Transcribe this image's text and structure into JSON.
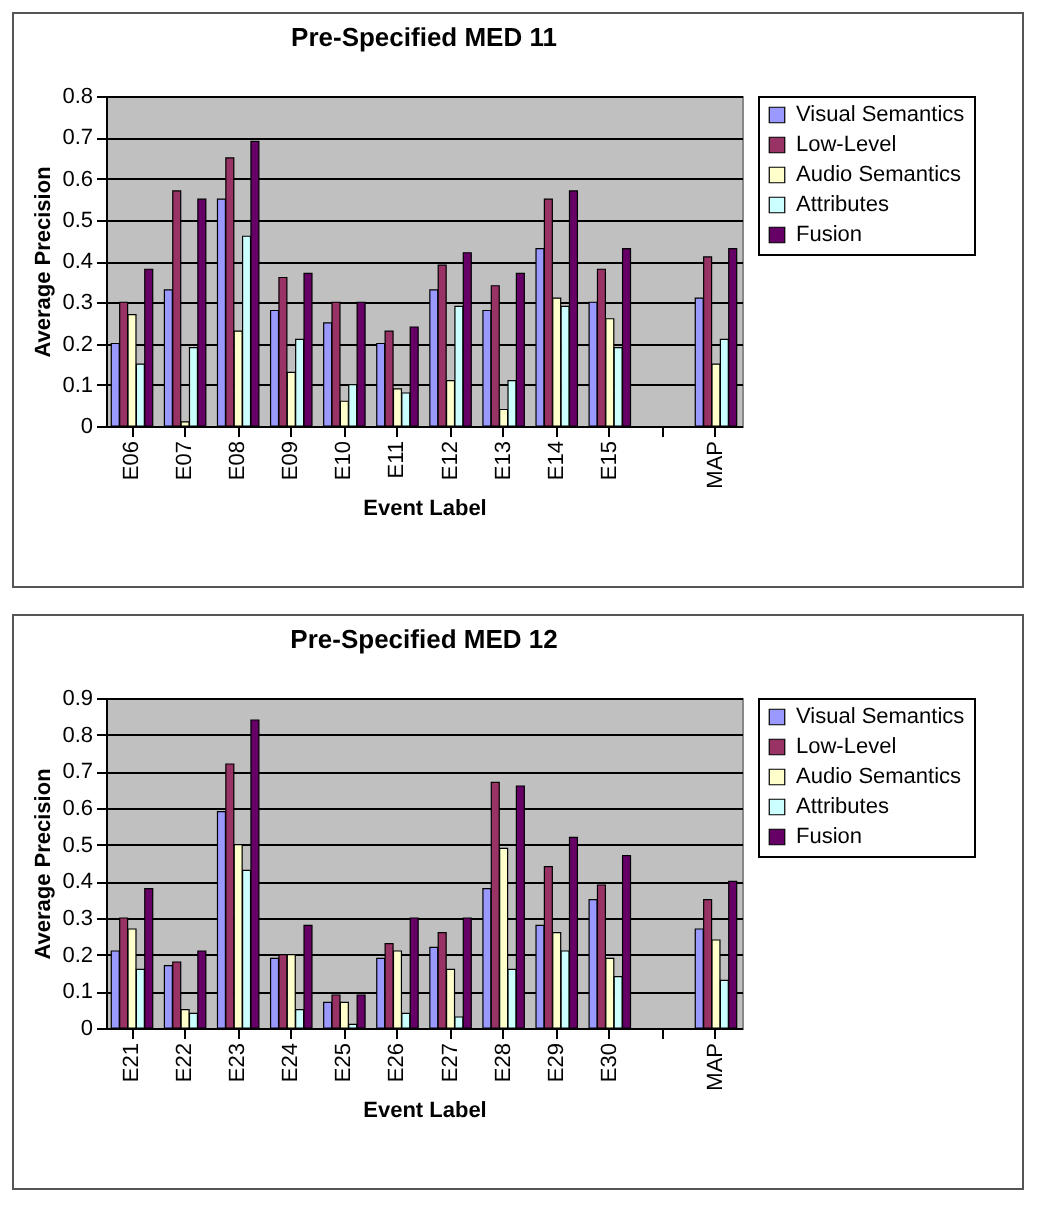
{
  "chart_data": [
    {
      "type": "bar",
      "title": "Pre-Specified MED 11",
      "xlabel": "Event Label",
      "ylabel": "Average Precision",
      "categories": [
        "E06",
        "E07",
        "E08",
        "E09",
        "E10",
        "E11",
        "E12",
        "E13",
        "E14",
        "E15",
        null,
        "MAP"
      ],
      "series": [
        {
          "name": "Visual Semantics",
          "color": "#9999ff",
          "values": [
            0.2,
            0.33,
            0.55,
            0.28,
            0.25,
            0.2,
            0.33,
            0.28,
            0.43,
            0.3,
            null,
            0.31
          ]
        },
        {
          "name": "Low-Level",
          "color": "#993366",
          "values": [
            0.3,
            0.57,
            0.65,
            0.36,
            0.3,
            0.23,
            0.39,
            0.34,
            0.55,
            0.38,
            null,
            0.41
          ]
        },
        {
          "name": "Audio Semantics",
          "color": "#ffffcc",
          "values": [
            0.27,
            0.01,
            0.23,
            0.13,
            0.06,
            0.09,
            0.11,
            0.04,
            0.31,
            0.26,
            null,
            0.15
          ]
        },
        {
          "name": "Attributes",
          "color": "#ccffff",
          "values": [
            0.15,
            0.19,
            0.46,
            0.21,
            0.1,
            0.08,
            0.29,
            0.11,
            0.29,
            0.19,
            null,
            0.21
          ]
        },
        {
          "name": "Fusion",
          "color": "#660066",
          "values": [
            0.38,
            0.55,
            0.69,
            0.37,
            0.3,
            0.24,
            0.42,
            0.37,
            0.57,
            0.43,
            null,
            0.43
          ]
        }
      ],
      "ylim": [
        0,
        0.8
      ],
      "yticks": [
        0,
        0.1,
        0.2,
        0.3,
        0.4,
        0.5,
        0.6,
        0.7,
        0.8
      ],
      "grid": "y",
      "legend": "right"
    },
    {
      "type": "bar",
      "title": "Pre-Specified MED 12",
      "xlabel": "Event Label",
      "ylabel": "Average Precision",
      "categories": [
        "E21",
        "E22",
        "E23",
        "E24",
        "E25",
        "E26",
        "E27",
        "E28",
        "E29",
        "E30",
        null,
        "MAP"
      ],
      "series": [
        {
          "name": "Visual Semantics",
          "color": "#9999ff",
          "values": [
            0.21,
            0.17,
            0.59,
            0.19,
            0.07,
            0.19,
            0.22,
            0.38,
            0.28,
            0.35,
            null,
            0.27
          ]
        },
        {
          "name": "Low-Level",
          "color": "#993366",
          "values": [
            0.3,
            0.18,
            0.72,
            0.2,
            0.09,
            0.23,
            0.26,
            0.67,
            0.44,
            0.39,
            null,
            0.35
          ]
        },
        {
          "name": "Audio Semantics",
          "color": "#ffffcc",
          "values": [
            0.27,
            0.05,
            0.5,
            0.2,
            0.07,
            0.21,
            0.16,
            0.49,
            0.26,
            0.19,
            null,
            0.24
          ]
        },
        {
          "name": "Attributes",
          "color": "#ccffff",
          "values": [
            0.16,
            0.04,
            0.43,
            0.05,
            0.01,
            0.04,
            0.03,
            0.16,
            0.21,
            0.14,
            null,
            0.13
          ]
        },
        {
          "name": "Fusion",
          "color": "#660066",
          "values": [
            0.38,
            0.21,
            0.84,
            0.28,
            0.09,
            0.3,
            0.3,
            0.66,
            0.52,
            0.47,
            null,
            0.4
          ]
        }
      ],
      "ylim": [
        0,
        0.9
      ],
      "yticks": [
        0,
        0.1,
        0.2,
        0.3,
        0.4,
        0.5,
        0.6,
        0.7,
        0.8,
        0.9
      ],
      "grid": "y",
      "legend": "right"
    }
  ]
}
